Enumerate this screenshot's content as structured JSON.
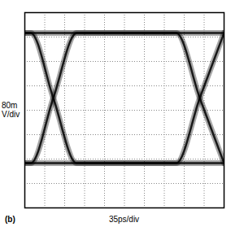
{
  "chart_data": {
    "type": "line",
    "x_label": "35ps/div",
    "y_label": "80mV/div",
    "annotation": "(b)",
    "x": [
      0,
      0.3,
      1.43,
      2.6,
      7.6,
      8.78,
      10
    ],
    "series": [
      {
        "color": "#000000",
        "values": [
          3.17,
          3.17,
          3.17,
          3.17,
          3.17,
          3.17,
          3.17
        ]
      },
      {
        "color": "#000000",
        "values": [
          -2.17,
          -2.17,
          -2.17,
          -2.17,
          -2.17,
          -2.17,
          -2.17
        ]
      },
      {
        "color": "#000000",
        "values": [
          -2.17,
          -2.17,
          0.5,
          3.17,
          3.17,
          0.5,
          -2.17
        ]
      },
      {
        "color": "#000000",
        "values": [
          3.17,
          3.17,
          0.5,
          -2.17,
          -2.17,
          0.5,
          3.17
        ]
      }
    ],
    "xlim": [
      0,
      10
    ],
    "ylim": [
      -4,
      4
    ],
    "xticks": [
      0,
      1,
      2,
      3,
      4,
      5,
      6,
      7,
      8,
      9,
      10
    ],
    "yticks": [
      -4,
      -3,
      -2,
      -1,
      0,
      1,
      2,
      3,
      4
    ],
    "grid": true,
    "tick_labels": false
  }
}
